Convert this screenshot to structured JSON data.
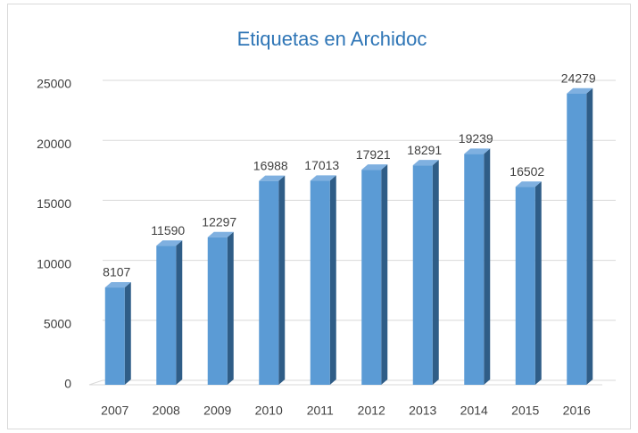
{
  "chart_data": {
    "type": "bar",
    "title": "Etiquetas en Archidoc",
    "categories": [
      "2007",
      "2008",
      "2009",
      "2010",
      "2011",
      "2012",
      "2013",
      "2014",
      "2015",
      "2016"
    ],
    "values": [
      8107,
      11590,
      12297,
      16988,
      17013,
      17921,
      18291,
      19239,
      16502,
      24279
    ],
    "color": "#5b9bd5",
    "ylim": [
      0,
      25000
    ],
    "yticks": [
      0,
      5000,
      10000,
      15000,
      20000,
      25000
    ],
    "grid": true
  }
}
